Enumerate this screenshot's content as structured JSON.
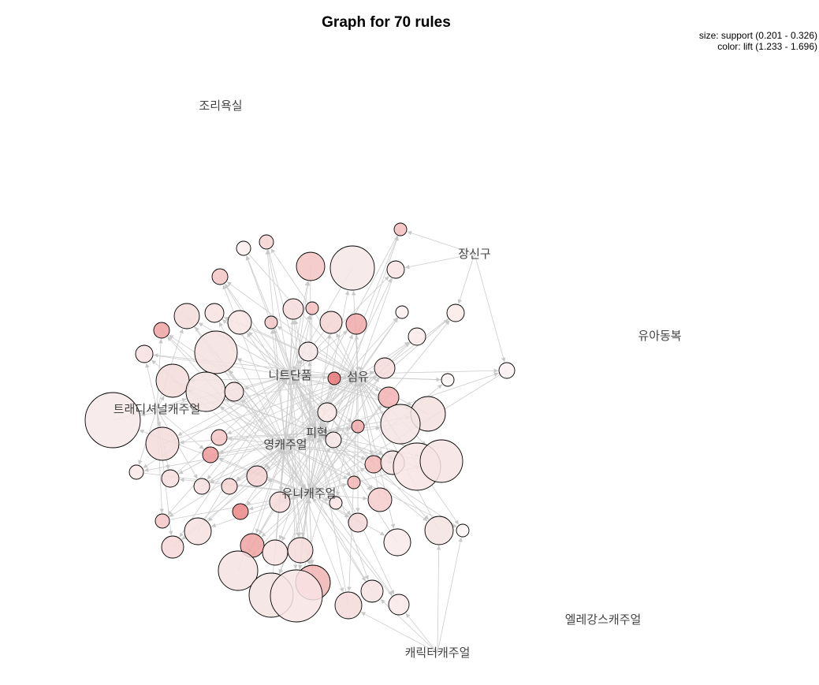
{
  "title": "Graph for 70 rules",
  "legend": {
    "size": "size: support (0.201 - 0.326)",
    "color": "color: lift (1.233 - 1.696)"
  },
  "items": [
    {
      "label": "조리욕실"
    },
    {
      "label": "장신구"
    },
    {
      "label": "유아동복"
    },
    {
      "label": "트래디셔널캐주얼"
    },
    {
      "label": "니트단품"
    },
    {
      "label": "섬유"
    },
    {
      "label": "피혁"
    },
    {
      "label": "영캐주얼"
    },
    {
      "label": "유니캐주얼"
    },
    {
      "label": "엘레강스캐주얼"
    },
    {
      "label": "캐릭터캐주얼"
    }
  ]
}
